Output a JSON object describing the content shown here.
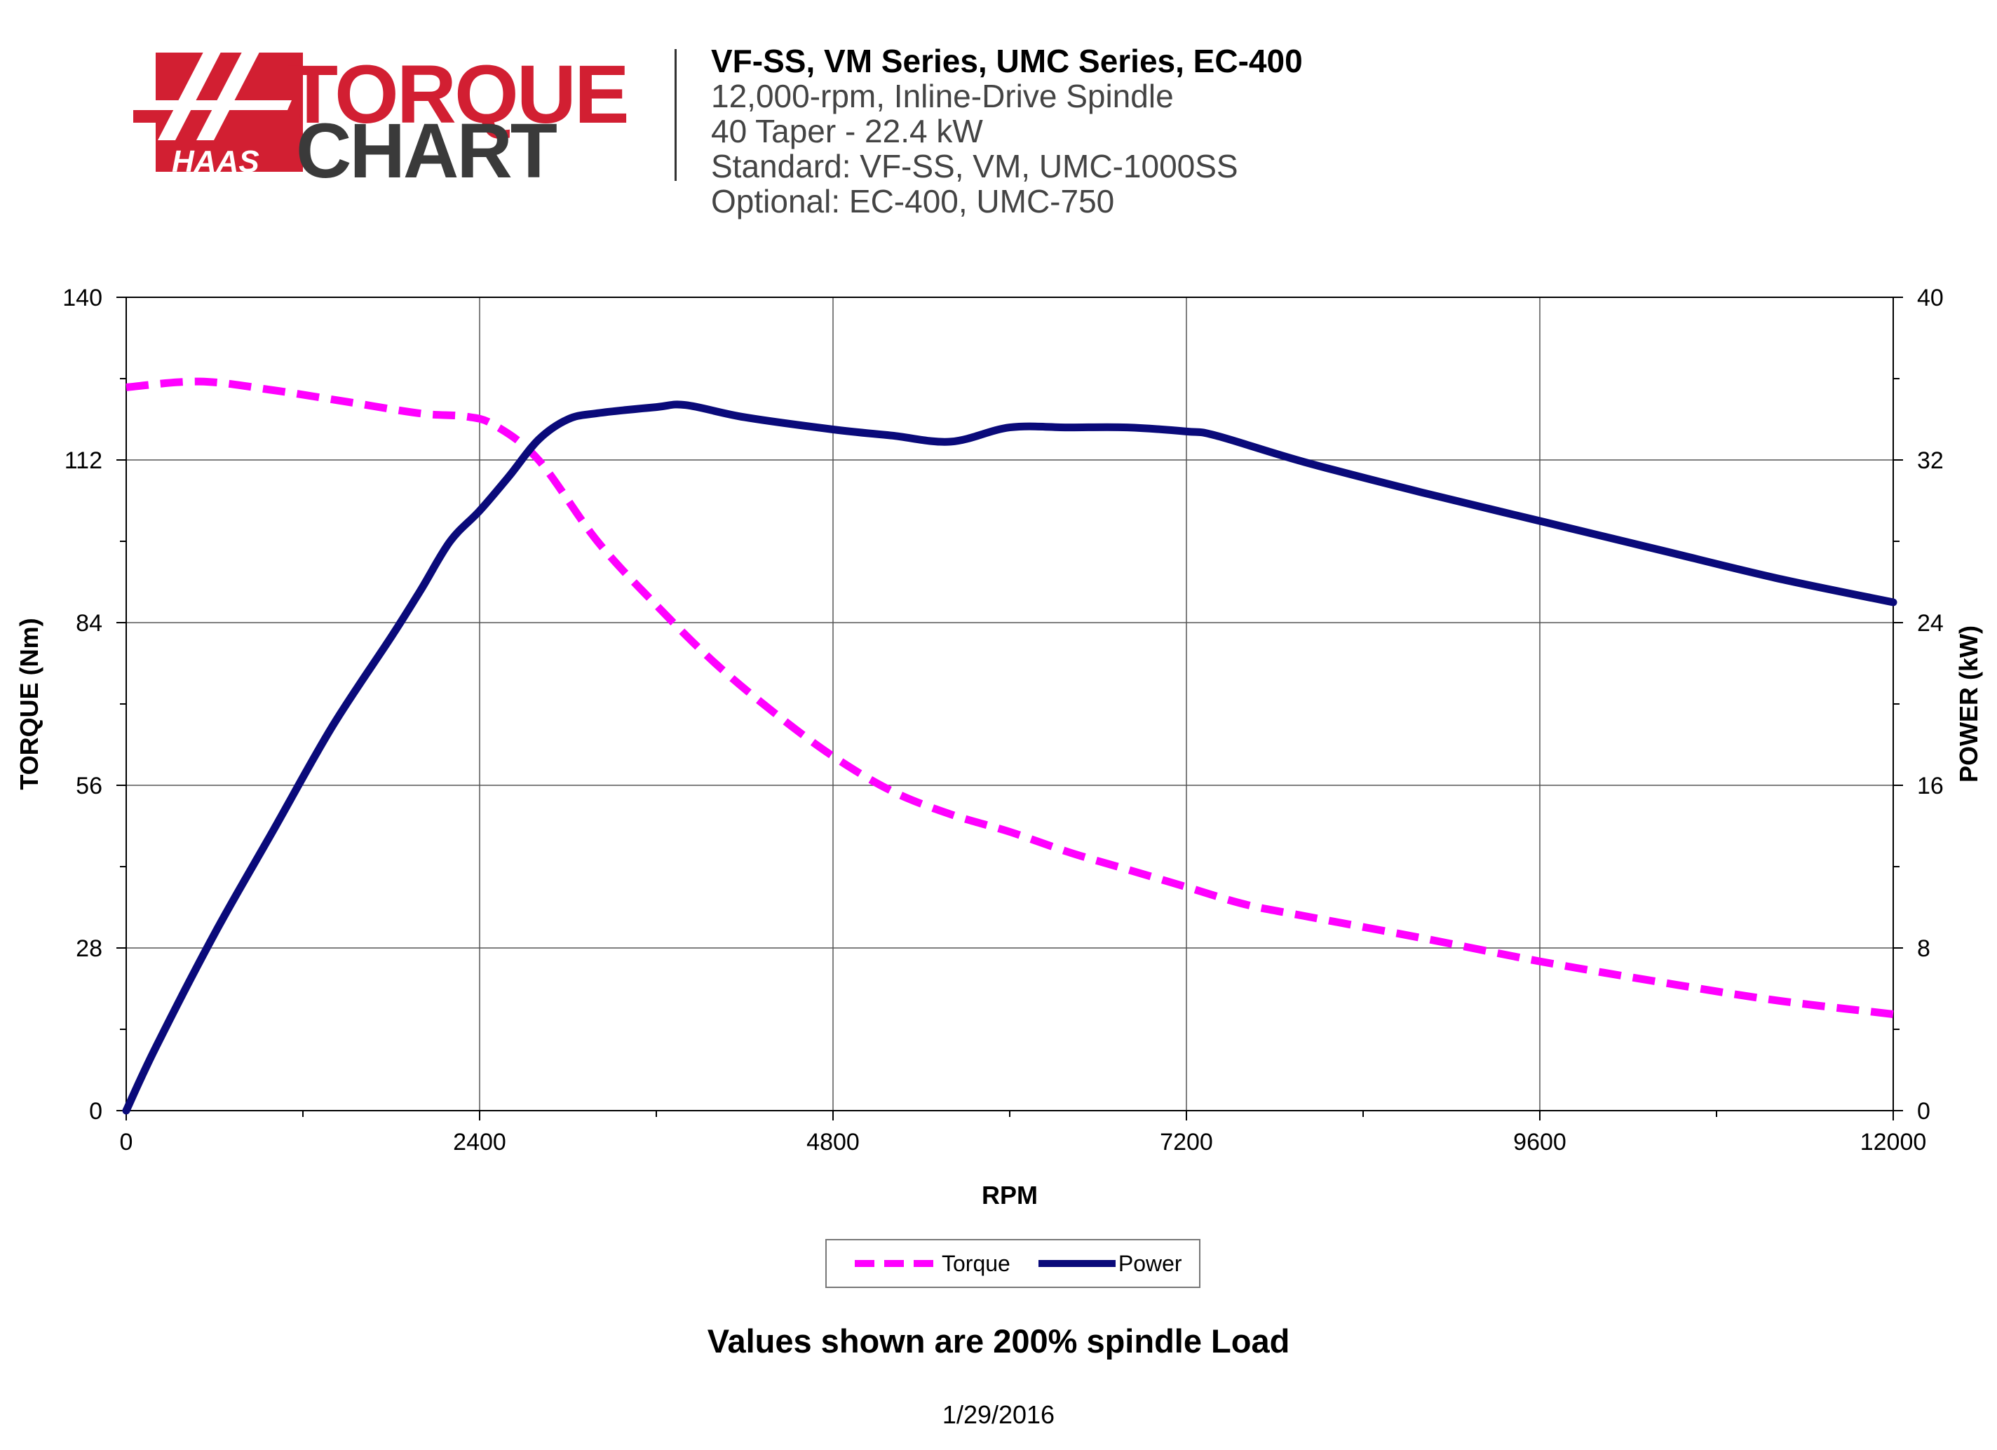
{
  "logo": {
    "brand": "HAAS",
    "word1": "TORQUE",
    "word2": "CHART"
  },
  "header": {
    "title": "VF-SS, VM Series, UMC Series, EC-400",
    "lines": [
      "12,000-rpm, Inline-Drive Spindle",
      "40 Taper - 22.4 kW",
      "Standard: VF-SS, VM, UMC-1000SS",
      "Optional: EC-400, UMC-750"
    ]
  },
  "chart_data": {
    "type": "line",
    "xlabel": "RPM",
    "ylabel": "TORQUE (Nm)",
    "y2label": "POWER (kW)",
    "xlim": [
      0,
      12000
    ],
    "ylim": [
      0,
      140
    ],
    "y2lim": [
      0,
      40
    ],
    "xticks": [
      "0",
      "2400",
      "4800",
      "7200",
      "9600",
      "12000"
    ],
    "yticks": [
      "0",
      "28",
      "56",
      "84",
      "112",
      "140"
    ],
    "y2ticks": [
      "0",
      "8",
      "16",
      "24",
      "32",
      "40"
    ],
    "grid": true,
    "legend_position": "bottom-center",
    "series": [
      {
        "name": "Torque",
        "axis": "left",
        "color": "#ff00ff",
        "style": "dashed",
        "x": [
          0,
          500,
          1000,
          1500,
          2000,
          2300,
          2500,
          2800,
          3200,
          3600,
          4000,
          4400,
          4800,
          5200,
          5600,
          6000,
          6400,
          6800,
          7200,
          7600,
          8000,
          8800,
          9600,
          10400,
          11200,
          12000
        ],
        "y": [
          124.5,
          125.5,
          124,
          122,
          120,
          119.5,
          118,
          112,
          98,
          87,
          77,
          68.5,
          61,
          55,
          51,
          48,
          44.5,
          41.5,
          38.5,
          35.5,
          33.5,
          29.7,
          25.7,
          22.2,
          19,
          16.6
        ]
      },
      {
        "name": "Power",
        "axis": "right",
        "color": "#0a0a7a",
        "style": "solid",
        "x": [
          0,
          200,
          600,
          1000,
          1400,
          1800,
          2000,
          2200,
          2400,
          2600,
          2800,
          3000,
          3200,
          3600,
          3800,
          4200,
          4800,
          5200,
          5600,
          6000,
          6400,
          6800,
          7200,
          7400,
          8000,
          8800,
          9600,
          10400,
          11200,
          12000
        ],
        "y": [
          0,
          3.1,
          8.7,
          13.8,
          18.9,
          23.3,
          25.6,
          28.0,
          29.5,
          31.2,
          33.0,
          34.0,
          34.3,
          34.6,
          34.7,
          34.1,
          33.5,
          33.2,
          32.9,
          33.6,
          33.6,
          33.6,
          33.4,
          33.2,
          31.9,
          30.4,
          29.0,
          27.6,
          26.2,
          25.0
        ]
      }
    ]
  },
  "legend": {
    "torque": "Torque",
    "power": "Power"
  },
  "footer": {
    "note": "Values shown are 200% spindle Load",
    "date": "1/29/2016"
  },
  "colors": {
    "torque": "#ff00ff",
    "power": "#0a0a7a",
    "logo_red": "#d21f32",
    "logo_dark": "#3a3a3a"
  }
}
